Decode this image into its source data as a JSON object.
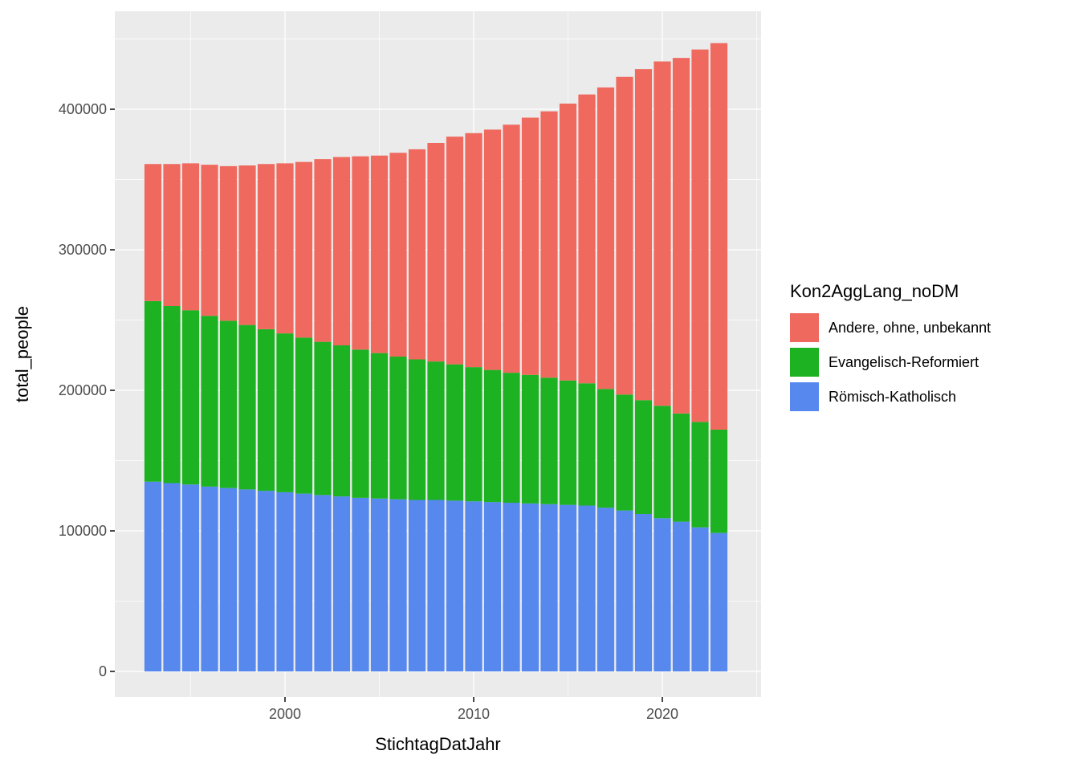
{
  "chart_data": {
    "type": "bar",
    "stacked": true,
    "title": "",
    "xlabel": "StichtagDatJahr",
    "ylabel": "total_people",
    "x": [
      1993,
      1994,
      1995,
      1996,
      1997,
      1998,
      1999,
      2000,
      2001,
      2002,
      2003,
      2004,
      2005,
      2006,
      2007,
      2008,
      2009,
      2010,
      2011,
      2012,
      2013,
      2014,
      2015,
      2016,
      2017,
      2018,
      2019,
      2020,
      2021,
      2022,
      2023
    ],
    "series": [
      {
        "name": "Römisch-Katholisch",
        "color": "#5688EE",
        "values": [
          135000,
          134000,
          133000,
          131500,
          130500,
          129500,
          128500,
          127500,
          126500,
          125500,
          124500,
          123500,
          123000,
          122500,
          122000,
          122000,
          121500,
          121000,
          120500,
          120000,
          119500,
          119000,
          118500,
          118000,
          116500,
          114500,
          112000,
          109000,
          106500,
          102500,
          98500
        ]
      },
      {
        "name": "Evangelisch-Reformiert",
        "color": "#1DB221",
        "values": [
          128500,
          126000,
          124000,
          121500,
          119000,
          117000,
          115000,
          113000,
          111000,
          109000,
          107500,
          105500,
          103500,
          101500,
          100000,
          98500,
          97000,
          95500,
          94000,
          92500,
          91500,
          90000,
          88500,
          87000,
          84500,
          82500,
          81000,
          80000,
          77000,
          75000,
          73500
        ]
      },
      {
        "name": "Andere, ohne, unbekannt",
        "color": "#F0695E",
        "values": [
          97500,
          101000,
          104500,
          107500,
          110000,
          113500,
          117500,
          121000,
          125000,
          130000,
          134000,
          137500,
          140500,
          145000,
          149500,
          155500,
          162000,
          166500,
          171000,
          176500,
          183000,
          189500,
          197000,
          205500,
          214500,
          226000,
          235500,
          245000,
          253000,
          265000,
          275000
        ]
      }
    ],
    "stack_order_bottom_to_top": [
      "Römisch-Katholisch",
      "Evangelisch-Reformiert",
      "Andere, ohne, unbekannt"
    ],
    "legend": {
      "title": "Kon2AggLang_noDM",
      "position": "right",
      "items": [
        {
          "label": "Andere, ohne, unbekannt",
          "color": "#F0695E"
        },
        {
          "label": "Evangelisch-Reformiert",
          "color": "#1DB221"
        },
        {
          "label": "Römisch-Katholisch",
          "color": "#5688EE"
        }
      ]
    },
    "yticks": [
      0,
      100000,
      200000,
      300000,
      400000
    ],
    "ytick_labels": [
      "0",
      "100000",
      "200000",
      "300000",
      "400000"
    ],
    "yticks_minor": [
      50000,
      150000,
      250000,
      350000,
      450000
    ],
    "xticks": [
      2000,
      2010,
      2020
    ],
    "xtick_labels": [
      "2000",
      "2010",
      "2020"
    ],
    "xticks_minor": [
      1995,
      2005,
      2015,
      2025
    ],
    "ylim": [
      0,
      469000
    ],
    "xlim": [
      1991,
      2025.2
    ],
    "grid": true,
    "panel_background": "#EBEBEB",
    "gridline_color": "#FFFFFF",
    "tick_label_color": "#4D4D4D",
    "tick_mark_color": "#333333"
  }
}
